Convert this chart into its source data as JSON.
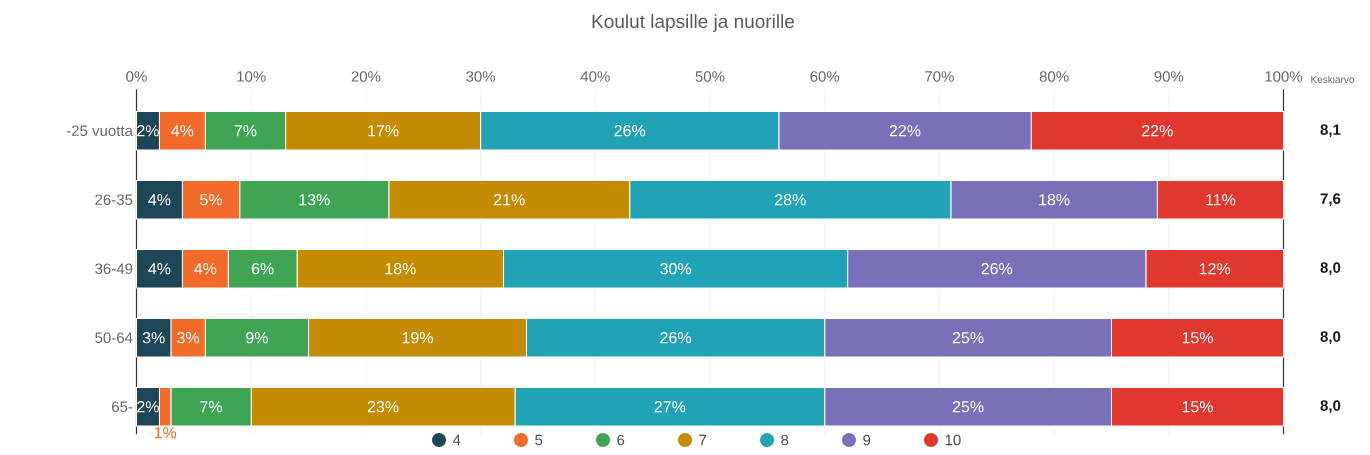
{
  "chart_data": {
    "type": "bar",
    "orientation": "horizontal",
    "stacked": true,
    "title": "Koulut lapsille ja nuorille",
    "categories": [
      "-25 vuotta",
      "26-35",
      "36-49",
      "50-64",
      "65-"
    ],
    "series": [
      {
        "name": "4",
        "color": "#1d4658",
        "values": [
          2,
          4,
          4,
          3,
          2
        ],
        "value_labels": [
          "2%",
          "4%",
          "4%",
          "3%",
          "2%"
        ]
      },
      {
        "name": "5",
        "color": "#f26b2b",
        "values": [
          4,
          5,
          4,
          3,
          1
        ],
        "value_labels": [
          "4%",
          "5%",
          "4%",
          "3%",
          "1%"
        ]
      },
      {
        "name": "6",
        "color": "#3fa454",
        "values": [
          7,
          13,
          6,
          9,
          7
        ],
        "value_labels": [
          "7%",
          "13%",
          "6%",
          "9%",
          "7%"
        ]
      },
      {
        "name": "7",
        "color": "#c48a00",
        "values": [
          17,
          21,
          18,
          19,
          23
        ],
        "value_labels": [
          "17%",
          "21%",
          "18%",
          "19%",
          "23%"
        ]
      },
      {
        "name": "8",
        "color": "#22a3b5",
        "values": [
          26,
          28,
          30,
          26,
          27
        ],
        "value_labels": [
          "26%",
          "28%",
          "30%",
          "26%",
          "27%"
        ]
      },
      {
        "name": "9",
        "color": "#7870b8",
        "values": [
          22,
          18,
          26,
          25,
          25
        ],
        "value_labels": [
          "22%",
          "18%",
          "26%",
          "25%",
          "25%"
        ]
      },
      {
        "name": "10",
        "color": "#e0382e",
        "values": [
          22,
          11,
          12,
          15,
          15
        ],
        "value_labels": [
          "22%",
          "11%",
          "12%",
          "15%",
          "15%"
        ]
      }
    ],
    "xlim": [
      0,
      100
    ],
    "xticks": [
      {
        "value": 0,
        "label": "0%"
      },
      {
        "value": 10,
        "label": "10%"
      },
      {
        "value": 20,
        "label": "20%"
      },
      {
        "value": 30,
        "label": "30%"
      },
      {
        "value": 40,
        "label": "40%"
      },
      {
        "value": 50,
        "label": "50%"
      },
      {
        "value": 60,
        "label": "60%"
      },
      {
        "value": 70,
        "label": "70%"
      },
      {
        "value": 80,
        "label": "80%"
      },
      {
        "value": 90,
        "label": "90%"
      },
      {
        "value": 100,
        "label": "100%"
      }
    ],
    "grid": "x",
    "legend": "bottom",
    "annotations": [
      "Keskiarvo",
      "8,1",
      "7,6",
      "8,0",
      "8,0",
      "8,0"
    ]
  }
}
